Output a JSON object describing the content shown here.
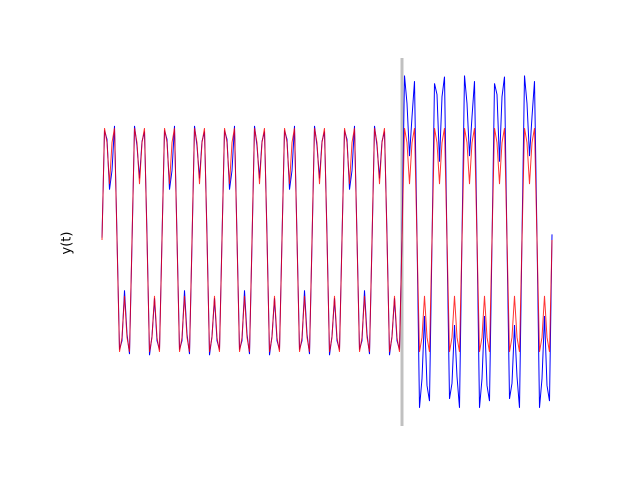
{
  "chart_data": {
    "type": "line",
    "ylabel": "y(t)",
    "xlim": [
      0,
      180
    ],
    "ylim": [
      -1.6,
      1.6
    ],
    "vline": {
      "x": 120,
      "color": "#c0c0c0"
    },
    "x": [
      0,
      1,
      2,
      3,
      4,
      5,
      6,
      7,
      8,
      9,
      10,
      11,
      12,
      13,
      14,
      15,
      16,
      17,
      18,
      19,
      20,
      21,
      22,
      23,
      24,
      25,
      26,
      27,
      28,
      29,
      30,
      31,
      32,
      33,
      34,
      35,
      36,
      37,
      38,
      39,
      40,
      41,
      42,
      43,
      44,
      45,
      46,
      47,
      48,
      49,
      50,
      51,
      52,
      53,
      54,
      55,
      56,
      57,
      58,
      59,
      60,
      61,
      62,
      63,
      64,
      65,
      66,
      67,
      68,
      69,
      70,
      71,
      72,
      73,
      74,
      75,
      76,
      77,
      78,
      79,
      80,
      81,
      82,
      83,
      84,
      85,
      86,
      87,
      88,
      89,
      90,
      91,
      92,
      93,
      94,
      95,
      96,
      97,
      98,
      99,
      100,
      101,
      102,
      103,
      104,
      105,
      106,
      107,
      108,
      109,
      110,
      111,
      112,
      113,
      114,
      115,
      116,
      117,
      118,
      119,
      120,
      121,
      122,
      123,
      124,
      125,
      126,
      127,
      128,
      129,
      130,
      131,
      132,
      133,
      134,
      135,
      136,
      137,
      138,
      139,
      140,
      141,
      142,
      143,
      144,
      145,
      146,
      147,
      148,
      149,
      150,
      151,
      152,
      153,
      154,
      155,
      156,
      157,
      158,
      159,
      160,
      161,
      162,
      163,
      164,
      165,
      166,
      167,
      168,
      169,
      170,
      171,
      172,
      173,
      174,
      175,
      176,
      177,
      178,
      179,
      180
    ],
    "series": [
      {
        "color": "#0000ff",
        "values": [
          0.02,
          0.98,
          0.9,
          0.45,
          0.62,
          1.02,
          0.03,
          -0.98,
          -0.9,
          -0.45,
          -0.84,
          -1.02,
          -0.03,
          1.02,
          0.84,
          0.55,
          0.88,
          0.97,
          0.05,
          -1.03,
          -0.86,
          -0.52,
          -0.9,
          -0.98,
          0.02,
          0.98,
          0.9,
          0.45,
          0.62,
          1.02,
          0.03,
          -0.98,
          -0.9,
          -0.45,
          -0.84,
          -1.02,
          -0.03,
          1.02,
          0.84,
          0.55,
          0.88,
          0.97,
          0.05,
          -1.03,
          -0.86,
          -0.52,
          -0.9,
          -0.98,
          0.02,
          0.98,
          0.9,
          0.45,
          0.62,
          1.02,
          0.03,
          -0.98,
          -0.9,
          -0.45,
          -0.84,
          -1.02,
          -0.03,
          1.02,
          0.84,
          0.55,
          0.88,
          0.97,
          0.05,
          -1.03,
          -0.86,
          -0.52,
          -0.9,
          -0.98,
          0.02,
          0.98,
          0.9,
          0.45,
          0.62,
          1.02,
          0.03,
          -0.98,
          -0.9,
          -0.45,
          -0.84,
          -1.02,
          -0.03,
          1.02,
          0.84,
          0.55,
          0.88,
          0.97,
          0.05,
          -1.03,
          -0.86,
          -0.52,
          -0.9,
          -0.98,
          0.02,
          0.98,
          0.9,
          0.45,
          0.62,
          1.02,
          0.03,
          -0.98,
          -0.9,
          -0.45,
          -0.84,
          -1.02,
          -0.03,
          1.02,
          0.84,
          0.55,
          0.88,
          0.97,
          0.05,
          -1.03,
          -0.86,
          -0.52,
          -0.9,
          -0.98,
          0.04,
          1.47,
          1.22,
          0.75,
          1.1,
          1.42,
          0.02,
          -1.5,
          -1.24,
          -0.68,
          -1.3,
          -1.44,
          -0.02,
          1.4,
          1.3,
          0.7,
          1.28,
          1.46,
          -0.03,
          -1.42,
          -1.28,
          -0.76,
          -1.22,
          -1.5,
          0.04,
          1.47,
          1.22,
          0.75,
          1.1,
          1.42,
          0.02,
          -1.5,
          -1.24,
          -0.68,
          -1.3,
          -1.44,
          -0.02,
          1.4,
          1.3,
          0.7,
          1.28,
          1.46,
          -0.03,
          -1.42,
          -1.28,
          -0.76,
          -1.22,
          -1.5,
          0.04,
          1.47,
          1.22,
          0.75,
          1.1,
          1.42,
          0.02,
          -1.5,
          -1.24,
          -0.68,
          -1.3,
          -1.44,
          0.05
        ]
      },
      {
        "color": "#ff0000",
        "values": [
          0,
          1,
          0.87,
          0.5,
          0.87,
          1,
          0,
          -1,
          -0.87,
          -0.5,
          -0.87,
          -1,
          0,
          1,
          0.87,
          0.5,
          0.87,
          1,
          0,
          -1,
          -0.87,
          -0.5,
          -0.87,
          -1,
          0,
          1,
          0.87,
          0.5,
          0.87,
          1,
          0,
          -1,
          -0.87,
          -0.5,
          -0.87,
          -1,
          0,
          1,
          0.87,
          0.5,
          0.87,
          1,
          0,
          -1,
          -0.87,
          -0.5,
          -0.87,
          -1,
          0,
          1,
          0.87,
          0.5,
          0.87,
          1,
          0,
          -1,
          -0.87,
          -0.5,
          -0.87,
          -1,
          0,
          1,
          0.87,
          0.5,
          0.87,
          1,
          0,
          -1,
          -0.87,
          -0.5,
          -0.87,
          -1,
          0,
          1,
          0.87,
          0.5,
          0.87,
          1,
          0,
          -1,
          -0.87,
          -0.5,
          -0.87,
          -1,
          0,
          1,
          0.87,
          0.5,
          0.87,
          1,
          0,
          -1,
          -0.87,
          -0.5,
          -0.87,
          -1,
          0,
          1,
          0.87,
          0.5,
          0.87,
          1,
          0,
          -1,
          -0.87,
          -0.5,
          -0.87,
          -1,
          0,
          1,
          0.87,
          0.5,
          0.87,
          1,
          0,
          -1,
          -0.87,
          -0.5,
          -0.87,
          -1,
          0,
          1,
          0.87,
          0.5,
          0.87,
          1,
          0,
          -1,
          -0.87,
          -0.5,
          -0.87,
          -1,
          0,
          1,
          0.87,
          0.5,
          0.87,
          1,
          0,
          -1,
          -0.87,
          -0.5,
          -0.87,
          -1,
          0,
          1,
          0.87,
          0.5,
          0.87,
          1,
          0,
          -1,
          -0.87,
          -0.5,
          -0.87,
          -1,
          0,
          1,
          0.87,
          0.5,
          0.87,
          1,
          0,
          -1,
          -0.87,
          -0.5,
          -0.87,
          -1,
          0,
          1,
          0.87,
          0.5,
          0.87,
          1,
          0,
          -1,
          -0.87,
          -0.5,
          -0.87,
          -1,
          0
        ]
      }
    ]
  }
}
